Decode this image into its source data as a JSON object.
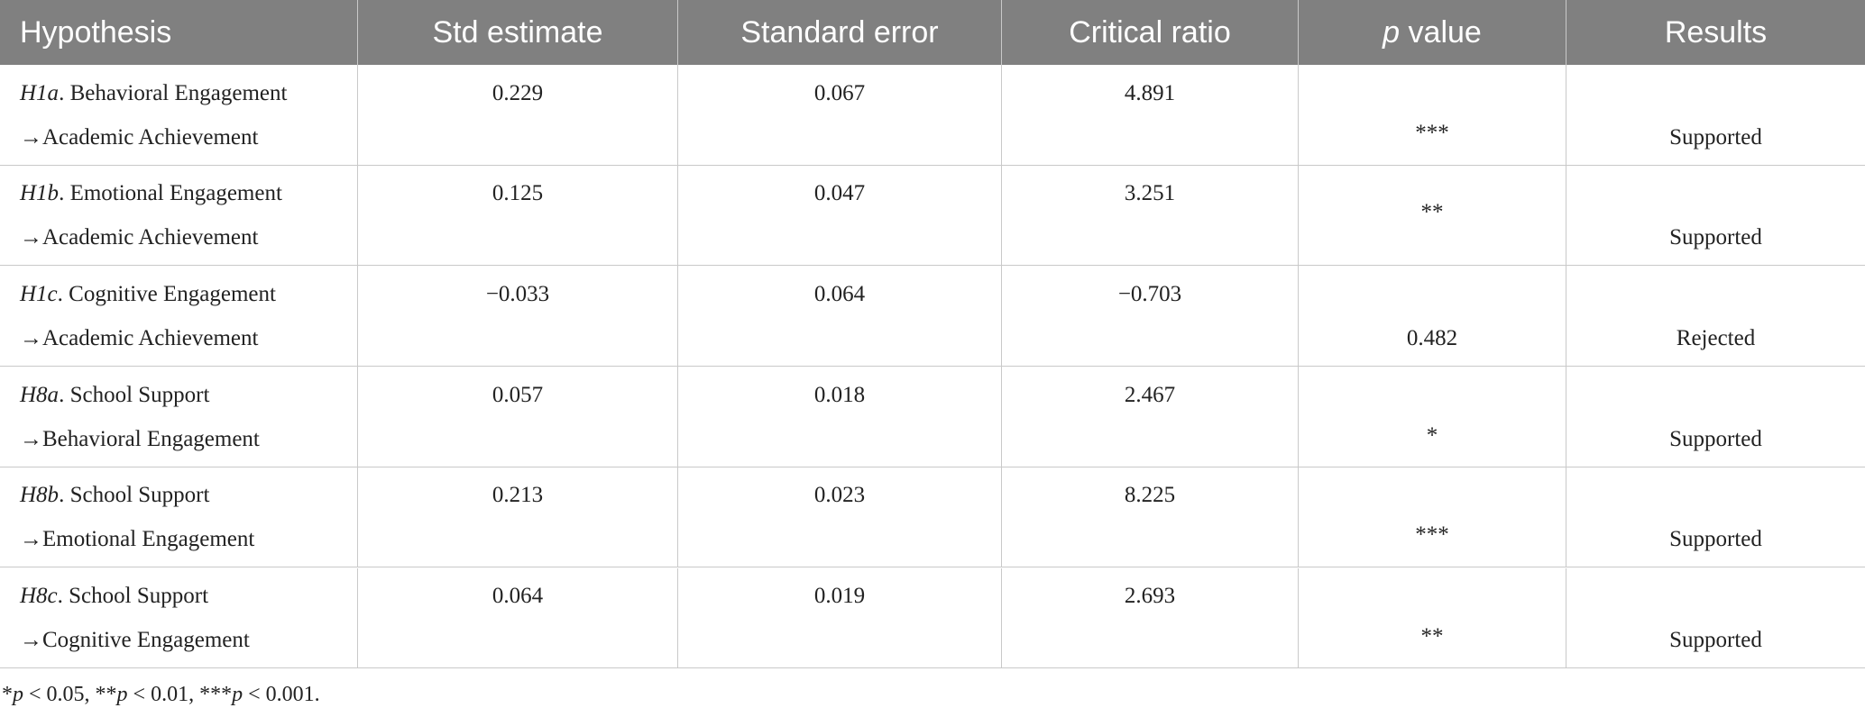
{
  "table": {
    "header": [
      "Hypothesis",
      "Std estimate",
      "Standard error",
      "Critical ratio",
      {
        "italic": "p",
        "text": " value"
      },
      "Results"
    ],
    "rows": [
      [
        {
          "id": "H1a",
          "text": ". Behavioral Engagement",
          "target": "→Academic Achievement"
        },
        "0.229",
        "0.067",
        "4.891",
        "***",
        "Supported"
      ],
      [
        {
          "id": "H1b",
          "text": ". Emotional Engagement",
          "target": "→Academic Achievement"
        },
        "0.125",
        "0.047",
        "3.251",
        "**",
        "Supported"
      ],
      [
        {
          "id": "H1c",
          "text": ". Cognitive Engagement",
          "target": "→Academic Achievement"
        },
        "−0.033",
        "0.064",
        "−0.703",
        "0.482",
        "Rejected"
      ],
      [
        {
          "id": "H8a",
          "text": ". School Support",
          "target": "→Behavioral Engagement"
        },
        "0.057",
        "0.018",
        "2.467",
        "*",
        "Supported"
      ],
      [
        {
          "id": "H8b",
          "text": ". School Support",
          "target": "→Emotional Engagement"
        },
        "0.213",
        "0.023",
        "8.225",
        "***",
        "Supported"
      ],
      [
        {
          "id": "H8c",
          "text": ". School Support",
          "target": "→Cognitive Engagement"
        },
        "0.064",
        "0.019",
        "2.693",
        "**",
        "Supported"
      ]
    ],
    "footnote": [
      "*",
      "p",
      " < 0.05, **",
      "p",
      " < 0.01, ***",
      "p",
      " < 0.001."
    ]
  }
}
